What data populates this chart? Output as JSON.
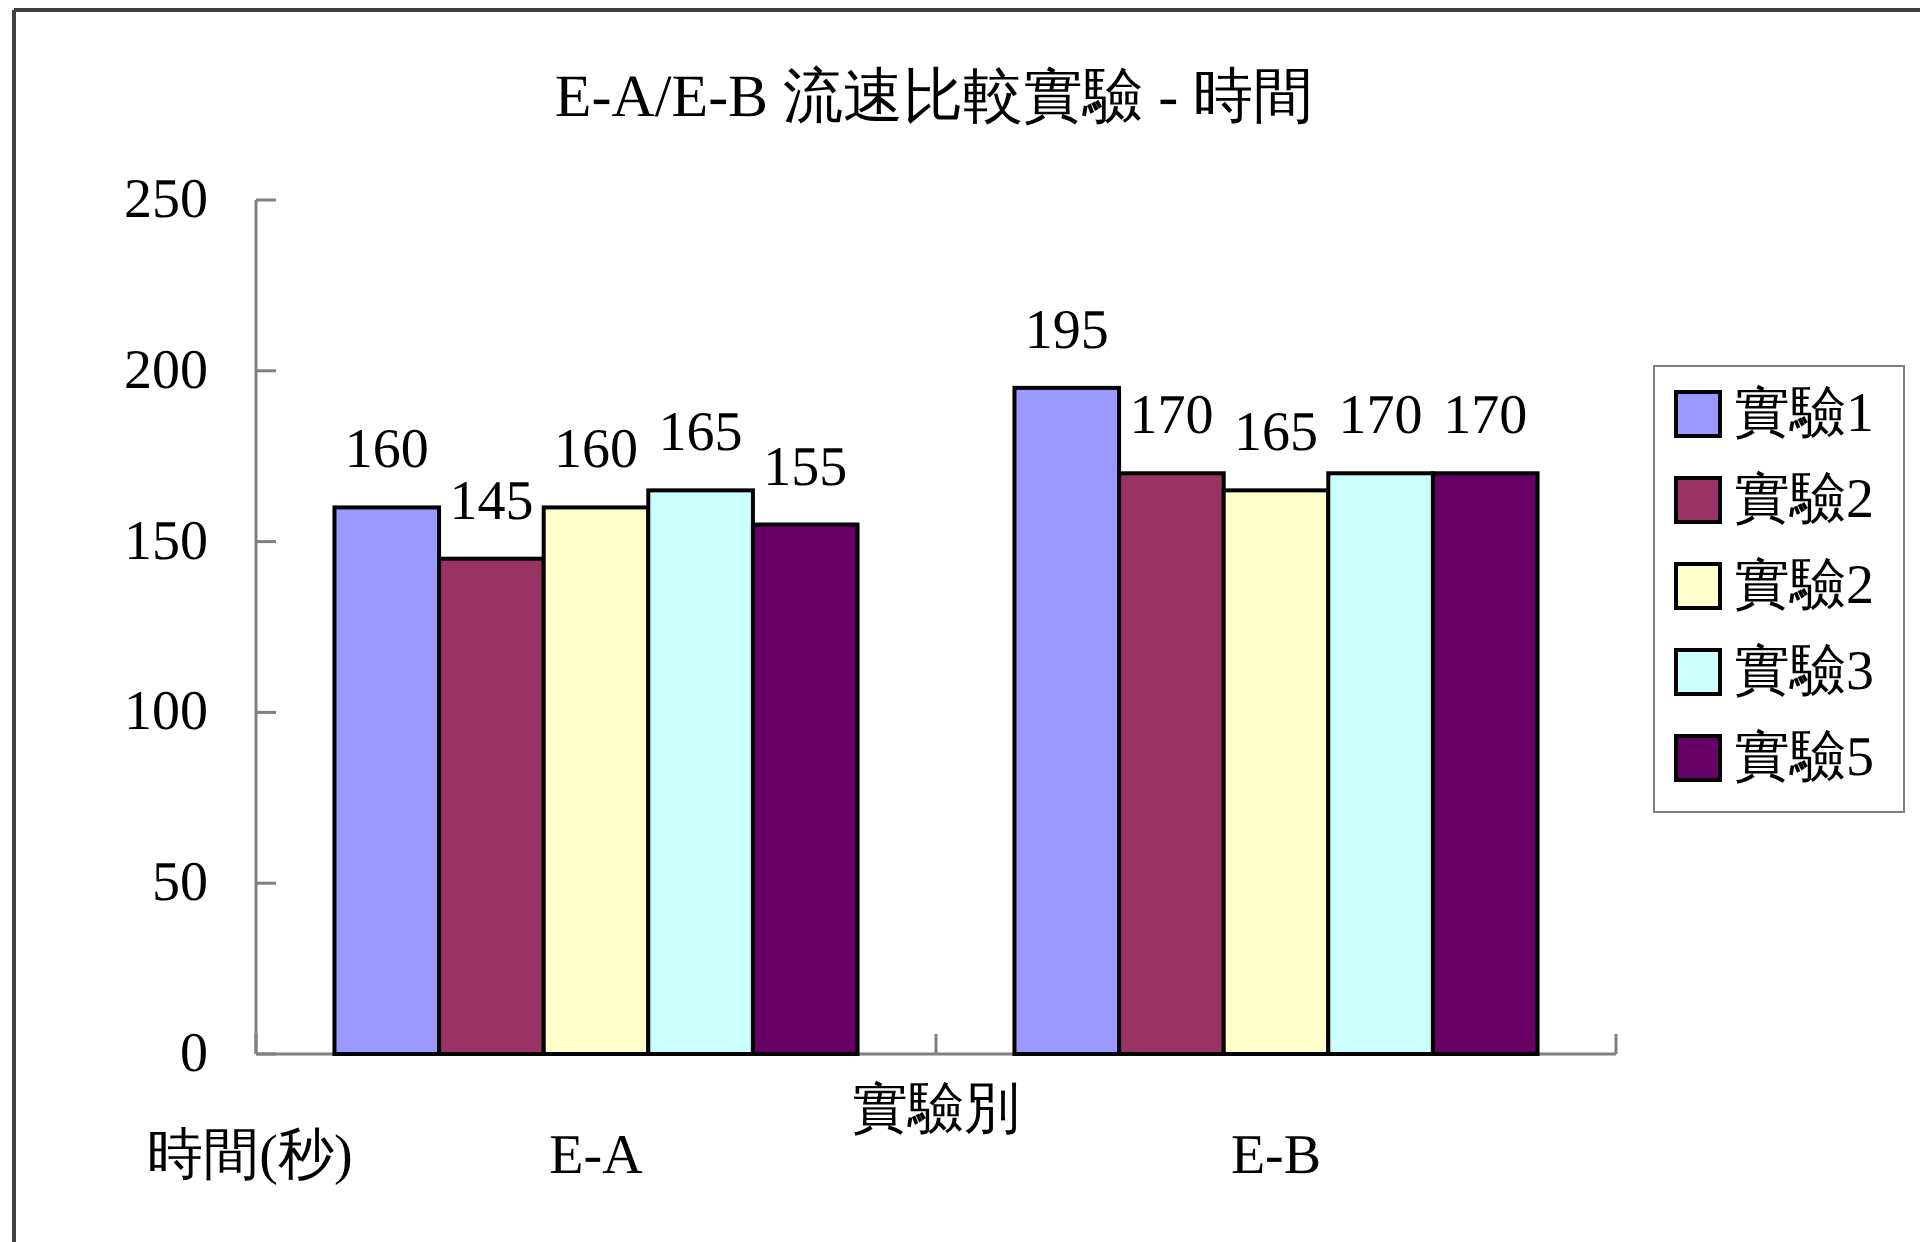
{
  "chart_data": {
    "type": "bar",
    "title": "E-A/E-B 流速比較實驗 - 時間",
    "xlabel": "實驗別",
    "ylabel": "時間(秒)",
    "categories": [
      "E-A",
      "E-B"
    ],
    "series": [
      {
        "name": "實驗1",
        "color": "#9999ff",
        "values": [
          160,
          195
        ]
      },
      {
        "name": "實驗2",
        "color": "#993366",
        "values": [
          145,
          170
        ]
      },
      {
        "name": "實驗2",
        "color": "#ffffcc",
        "values": [
          160,
          165
        ]
      },
      {
        "name": "實驗3",
        "color": "#ccffff",
        "values": [
          165,
          170
        ]
      },
      {
        "name": "實驗5",
        "color": "#660066",
        "values": [
          155,
          170
        ]
      }
    ],
    "ylim": [
      0,
      250
    ],
    "yticks": [
      0,
      50,
      100,
      150,
      200,
      250
    ],
    "legend": "right",
    "data_labels": true
  }
}
